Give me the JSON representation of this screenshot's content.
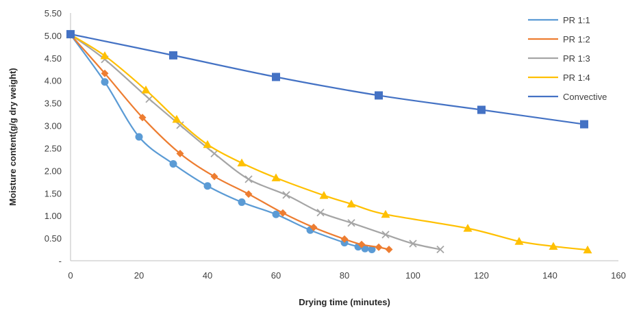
{
  "chart_data": {
    "type": "line",
    "xlabel": "Drying time (minutes)",
    "ylabel": "Moisture content(g/g dry weight)",
    "xlim": [
      0,
      160
    ],
    "ylim": [
      0,
      5.5
    ],
    "x_ticks": [
      "0",
      "20",
      "40",
      "60",
      "80",
      "100",
      "120",
      "140",
      "160"
    ],
    "y_ticks": [
      "-",
      "0.50",
      "1.00",
      "1.50",
      "2.00",
      "2.50",
      "3.00",
      "3.50",
      "4.00",
      "4.50",
      "5.00",
      "5.50"
    ],
    "legend_position": "top-right",
    "grid": false,
    "series": [
      {
        "name": "PR 1:1",
        "color": "#5B9BD5",
        "marker": "circle",
        "points": [
          [
            0,
            5.02
          ],
          [
            10,
            3.97
          ],
          [
            20,
            2.75
          ],
          [
            30,
            2.15
          ],
          [
            40,
            1.66
          ],
          [
            50,
            1.3
          ],
          [
            60,
            1.03
          ],
          [
            70,
            0.68
          ],
          [
            80,
            0.4
          ],
          [
            84,
            0.31
          ],
          [
            86,
            0.27
          ],
          [
            88,
            0.25
          ]
        ]
      },
      {
        "name": "PR 1:2",
        "color": "#ED7D31",
        "marker": "diamond",
        "points": [
          [
            0,
            5.02
          ],
          [
            10,
            4.16
          ],
          [
            21,
            3.18
          ],
          [
            32,
            2.38
          ],
          [
            42,
            1.87
          ],
          [
            52,
            1.48
          ],
          [
            62,
            1.06
          ],
          [
            71,
            0.74
          ],
          [
            80,
            0.48
          ],
          [
            85,
            0.36
          ],
          [
            90,
            0.3
          ],
          [
            93,
            0.25
          ]
        ]
      },
      {
        "name": "PR 1:3",
        "color": "#A5A5A5",
        "marker": "x",
        "points": [
          [
            0,
            5.02
          ],
          [
            10,
            4.47
          ],
          [
            23,
            3.59
          ],
          [
            32,
            3.01
          ],
          [
            42,
            2.38
          ],
          [
            52,
            1.81
          ],
          [
            63,
            1.46
          ],
          [
            73,
            1.07
          ],
          [
            82,
            0.84
          ],
          [
            92,
            0.58
          ],
          [
            100,
            0.38
          ],
          [
            108,
            0.25
          ]
        ]
      },
      {
        "name": "PR 1:4",
        "color": "#FFC000",
        "marker": "triangle",
        "points": [
          [
            0,
            5.02
          ],
          [
            10,
            4.55
          ],
          [
            22,
            3.79
          ],
          [
            31,
            3.14
          ],
          [
            40,
            2.58
          ],
          [
            50,
            2.17
          ],
          [
            60,
            1.84
          ],
          [
            74,
            1.45
          ],
          [
            82,
            1.26
          ],
          [
            92,
            1.03
          ],
          [
            116,
            0.72
          ],
          [
            131,
            0.43
          ],
          [
            141,
            0.32
          ],
          [
            151,
            0.24
          ]
        ]
      },
      {
        "name": "Convective",
        "color": "#4472C4",
        "marker": "square",
        "points": [
          [
            0,
            5.03
          ],
          [
            30,
            4.56
          ],
          [
            60,
            4.08
          ],
          [
            90,
            3.67
          ],
          [
            120,
            3.35
          ],
          [
            150,
            3.03
          ]
        ]
      }
    ]
  }
}
